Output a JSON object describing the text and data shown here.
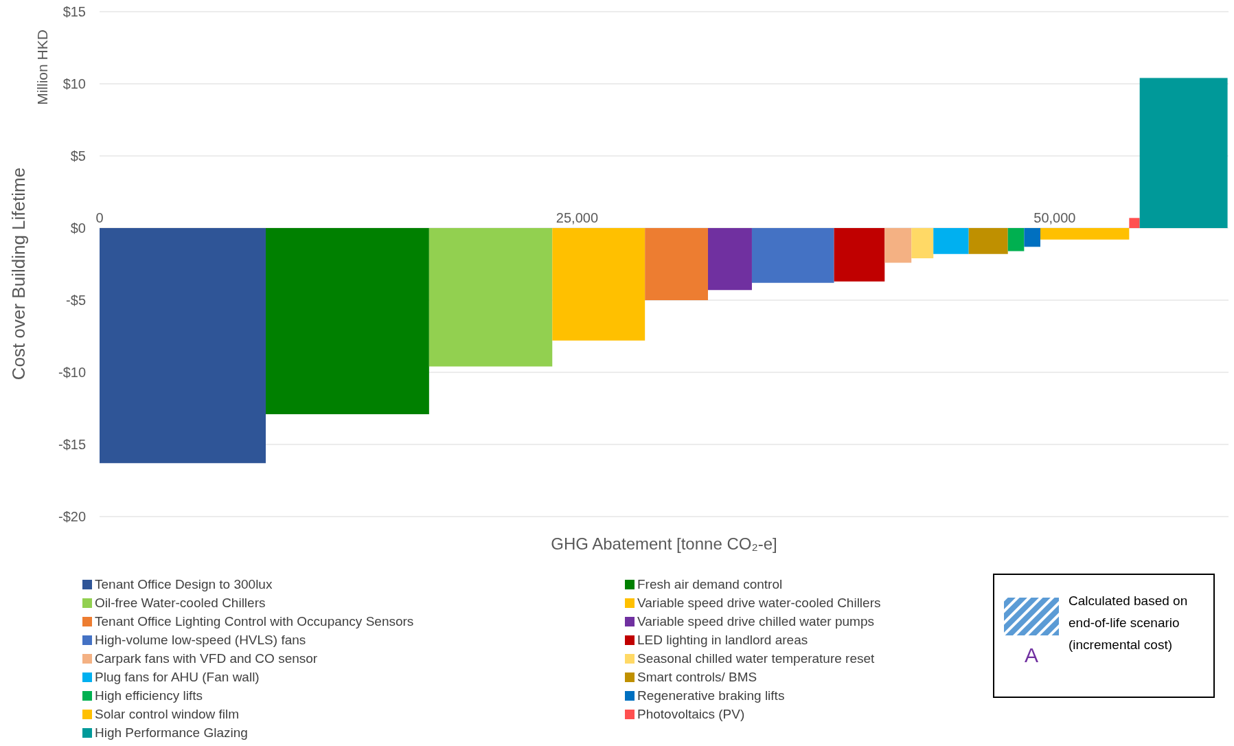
{
  "chart_data": {
    "type": "area",
    "xlabel": "GHG Abatement [tonne CO₂-e]",
    "ylabel": "Cost over Building Lifetime",
    "annotations": [
      "Million HKD",
      "Calculated based on end-of-life scenario (incremental cost)",
      "A"
    ],
    "xlim": [
      0,
      59100
    ],
    "xticks": [
      0,
      {
        "value": 25000,
        "label": "25,000"
      },
      {
        "value": 50000,
        "label": "50,000"
      }
    ],
    "ylim": [
      -20,
      15
    ],
    "yticks": [
      {
        "value": -20,
        "label": "-$20"
      },
      {
        "value": -15,
        "label": "-$15"
      },
      {
        "value": -10,
        "label": "-$10"
      },
      {
        "value": -5,
        "label": "-$5"
      },
      {
        "value": 0,
        "label": "$0"
      },
      {
        "value": 5,
        "label": "$5"
      },
      {
        "value": 10,
        "label": "$10"
      },
      {
        "value": 15,
        "label": "$15"
      }
    ],
    "grid": "y",
    "legend": "bottom",
    "series": [
      {
        "name": "Tenant Office Design to 300lux",
        "color": "#2f5597",
        "x": [
          0,
          8700
        ],
        "values": [
          -16.3,
          -16.3
        ]
      },
      {
        "name": "Fresh air demand control",
        "color": "#008000",
        "x": [
          8700,
          17250
        ],
        "values": [
          -12.9,
          -12.9
        ]
      },
      {
        "name": "Oil-free Water-cooled Chillers",
        "color": "#92d050",
        "x": [
          17250,
          23700
        ],
        "values": [
          -9.6,
          -9.6
        ]
      },
      {
        "name": "Variable speed drive water-cooled Chillers",
        "color": "#ffc000",
        "x": [
          23700,
          28550
        ],
        "values": [
          -7.8,
          -7.8
        ]
      },
      {
        "name": "Tenant Office Lighting Control with Occupancy Sensors",
        "color": "#ed7d31",
        "x": [
          28550,
          31850
        ],
        "values": [
          -5.0,
          -5.0
        ]
      },
      {
        "name": "Variable speed drive chilled water pumps",
        "color": "#7030a0",
        "x": [
          31850,
          34150
        ],
        "values": [
          -4.3,
          -4.3
        ]
      },
      {
        "name": "High-volume low-speed (HVLS) fans",
        "color": "#4472c4",
        "x": [
          34150,
          38450
        ],
        "values": [
          -3.8,
          -3.8
        ]
      },
      {
        "name": "LED lighting in landlord areas",
        "color": "#c00000",
        "x": [
          38450,
          41100
        ],
        "values": [
          -3.7,
          -3.7
        ]
      },
      {
        "name": "Carpark fans with VFD and CO sensor",
        "color": "#f4b183",
        "x": [
          41100,
          42500
        ],
        "values": [
          -2.4,
          -2.4
        ]
      },
      {
        "name": "Seasonal chilled water temperature reset",
        "color": "#ffd966",
        "x": [
          42500,
          43650
        ],
        "values": [
          -2.1,
          -2.1
        ]
      },
      {
        "name": "Plug fans for AHU (Fan wall)",
        "color": "#00b0f0",
        "x": [
          43650,
          45500
        ],
        "values": [
          -1.8,
          -1.8
        ]
      },
      {
        "name": "Smart controls/ BMS",
        "color": "#bf9000",
        "x": [
          45500,
          47550
        ],
        "values": [
          -1.8,
          -1.8
        ]
      },
      {
        "name": "High efficiency lifts",
        "color": "#00b050",
        "x": [
          47550,
          48400
        ],
        "values": [
          -1.6,
          -1.6
        ]
      },
      {
        "name": "Regenerative braking lifts",
        "color": "#0070c0",
        "x": [
          48400,
          49250
        ],
        "values": [
          -1.3,
          -1.3
        ]
      },
      {
        "name": "Solar control window film",
        "color": "#ffc000",
        "x": [
          49250,
          53900
        ],
        "values": [
          -0.8,
          -0.8
        ]
      },
      {
        "name": "Photovoltaics (PV)",
        "color": "#ff5050",
        "x": [
          53900,
          54450
        ],
        "values": [
          0.7,
          0.7
        ]
      },
      {
        "name": "High Performance Glazing",
        "color": "#009999",
        "x": [
          54450,
          59050
        ],
        "values": [
          10.4,
          10.4
        ]
      }
    ]
  }
}
